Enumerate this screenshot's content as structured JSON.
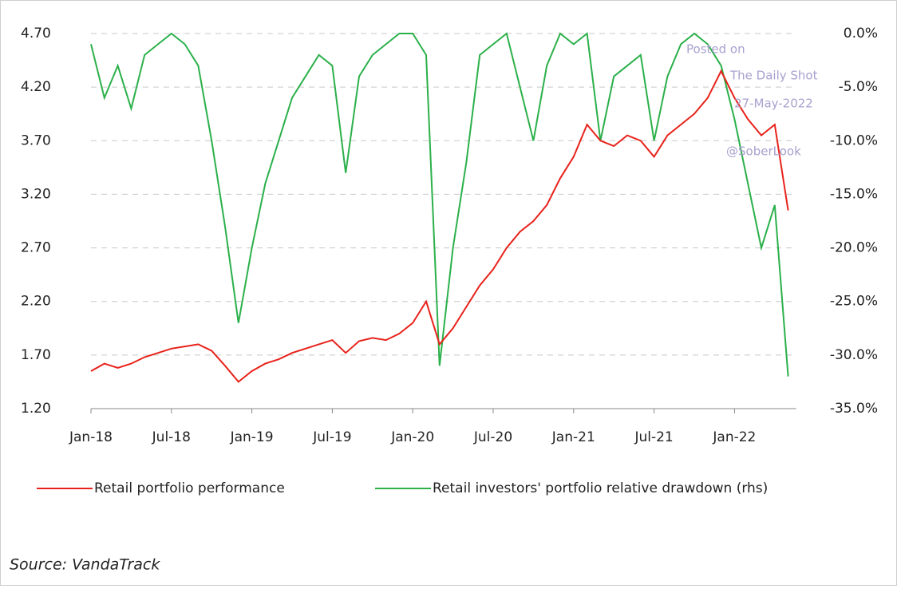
{
  "chart_data": {
    "type": "line",
    "categories": [
      "Jan-18",
      null,
      null,
      null,
      null,
      null,
      "Jul-18",
      null,
      null,
      null,
      null,
      null,
      "Jan-19",
      null,
      null,
      null,
      null,
      null,
      "Jul-19",
      null,
      null,
      null,
      null,
      null,
      "Jan-20",
      null,
      null,
      null,
      null,
      null,
      "Jul-20",
      null,
      null,
      null,
      null,
      null,
      "Jan-21",
      null,
      null,
      null,
      null,
      null,
      "Jul-21",
      null,
      null,
      null,
      null,
      null,
      "Jan-22",
      null,
      null,
      null,
      null
    ],
    "series": [
      {
        "name": "Retail portfolio performance",
        "color": "#e8221b",
        "values": [
          1.55,
          1.62,
          1.58,
          1.62,
          1.68,
          1.72,
          1.76,
          1.78,
          1.8,
          1.74,
          1.6,
          1.45,
          1.55,
          1.62,
          1.66,
          1.72,
          1.76,
          1.8,
          1.84,
          1.72,
          1.83,
          1.86,
          1.84,
          1.9,
          2.0,
          2.2,
          1.8,
          1.95,
          2.15,
          2.35,
          2.5,
          2.7,
          2.85,
          2.95,
          3.1,
          3.35,
          3.55,
          3.85,
          3.7,
          3.65,
          3.75,
          3.7,
          3.55,
          3.75,
          3.85,
          3.95,
          4.1,
          4.35,
          4.1,
          3.9,
          3.75,
          3.85,
          3.05
        ]
      },
      {
        "name": "Retail investors' portfolio relative drawdown (rhs)",
        "color": "#2bb04a",
        "axis": "y2",
        "values": [
          -1,
          -6,
          -3,
          -7,
          -2,
          -1,
          0,
          -1,
          -3,
          -10,
          -18,
          -27,
          -20,
          -14,
          -10,
          -6,
          -4,
          -2,
          -3,
          -13,
          -4,
          -2,
          -1,
          0,
          0,
          -2,
          -31,
          -20,
          -12,
          -2,
          -1,
          0,
          -5,
          -10,
          -3,
          0,
          -1,
          0,
          -10,
          -4,
          -3,
          -2,
          -10,
          -4,
          -1,
          0,
          -1,
          -3,
          -8,
          -14,
          -20,
          -16,
          -32
        ]
      }
    ],
    "ylim": [
      1.2,
      4.7
    ],
    "yticks": [
      {
        "value": 1.2,
        "label": "1.20"
      },
      {
        "value": 1.7,
        "label": "1.70"
      },
      {
        "value": 2.2,
        "label": "2.20"
      },
      {
        "value": 2.7,
        "label": "2.70"
      },
      {
        "value": 3.2,
        "label": "3.20"
      },
      {
        "value": 3.7,
        "label": "3.70"
      },
      {
        "value": 4.2,
        "label": "4.20"
      },
      {
        "value": 4.7,
        "label": "4.70"
      }
    ],
    "y2lim": [
      -35,
      0
    ],
    "y2ticks": [
      {
        "value": -35,
        "label": "-35.0%"
      },
      {
        "value": -30,
        "label": "-30.0%"
      },
      {
        "value": -25,
        "label": "-25.0%"
      },
      {
        "value": -20,
        "label": "-20.0%"
      },
      {
        "value": -15,
        "label": "-15.0%"
      },
      {
        "value": -10,
        "label": "-10.0%"
      },
      {
        "value": -5,
        "label": "-5.0%"
      },
      {
        "value": 0,
        "label": "0.0%"
      }
    ],
    "grid": true,
    "annotations": [
      "Posted on",
      "The Daily Shot",
      "27-May-2022",
      "@SoberLook"
    ],
    "source": "Source: VandaTrack"
  }
}
